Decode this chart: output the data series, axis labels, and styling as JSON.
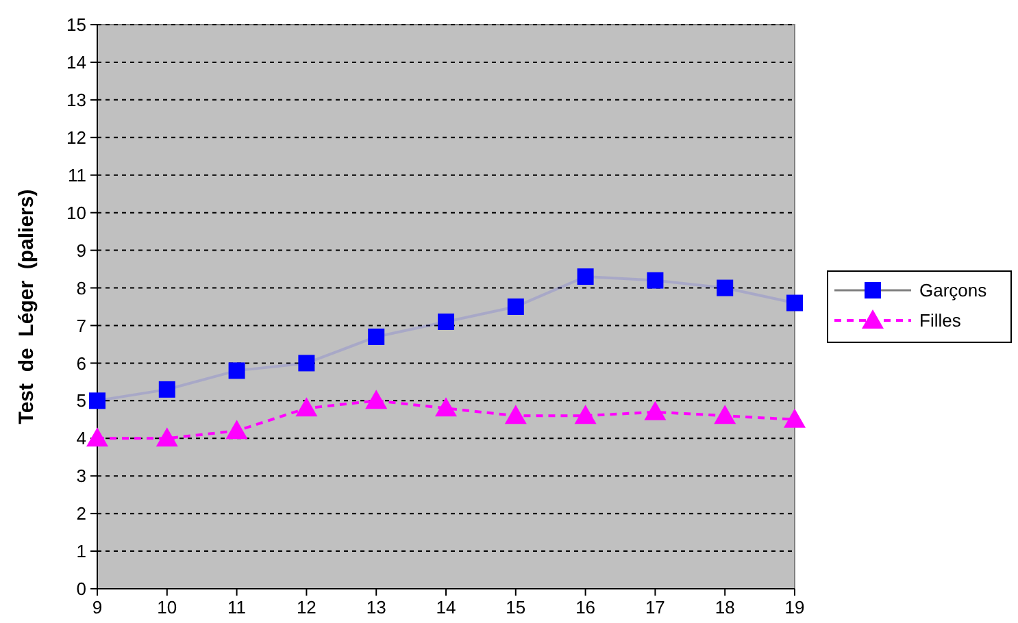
{
  "chart_data": {
    "type": "line",
    "ylabel": "Test  de  Léger  (paliers)",
    "x": [
      9,
      10,
      11,
      12,
      13,
      14,
      15,
      16,
      17,
      18,
      19
    ],
    "xlim": [
      9,
      19
    ],
    "xticks": [
      9,
      10,
      11,
      12,
      13,
      14,
      15,
      16,
      17,
      18,
      19
    ],
    "ylim": [
      0,
      15
    ],
    "yticks": [
      0,
      1,
      2,
      3,
      4,
      5,
      6,
      7,
      8,
      9,
      10,
      11,
      12,
      13,
      14,
      15
    ],
    "grid": "y",
    "legend": "right",
    "series": [
      {
        "name": "Garçons",
        "color": "#0000ff",
        "marker": "square",
        "line_style": "solid",
        "values": [
          5.0,
          5.3,
          5.8,
          6.0,
          6.7,
          7.1,
          7.5,
          8.3,
          8.2,
          8.0,
          7.6
        ]
      },
      {
        "name": "Filles",
        "color": "#ff00ff",
        "marker": "triangle",
        "line_style": "dashed",
        "values": [
          4.0,
          4.0,
          4.2,
          4.8,
          5.0,
          4.8,
          4.6,
          4.6,
          4.7,
          4.6,
          4.5
        ]
      }
    ]
  }
}
